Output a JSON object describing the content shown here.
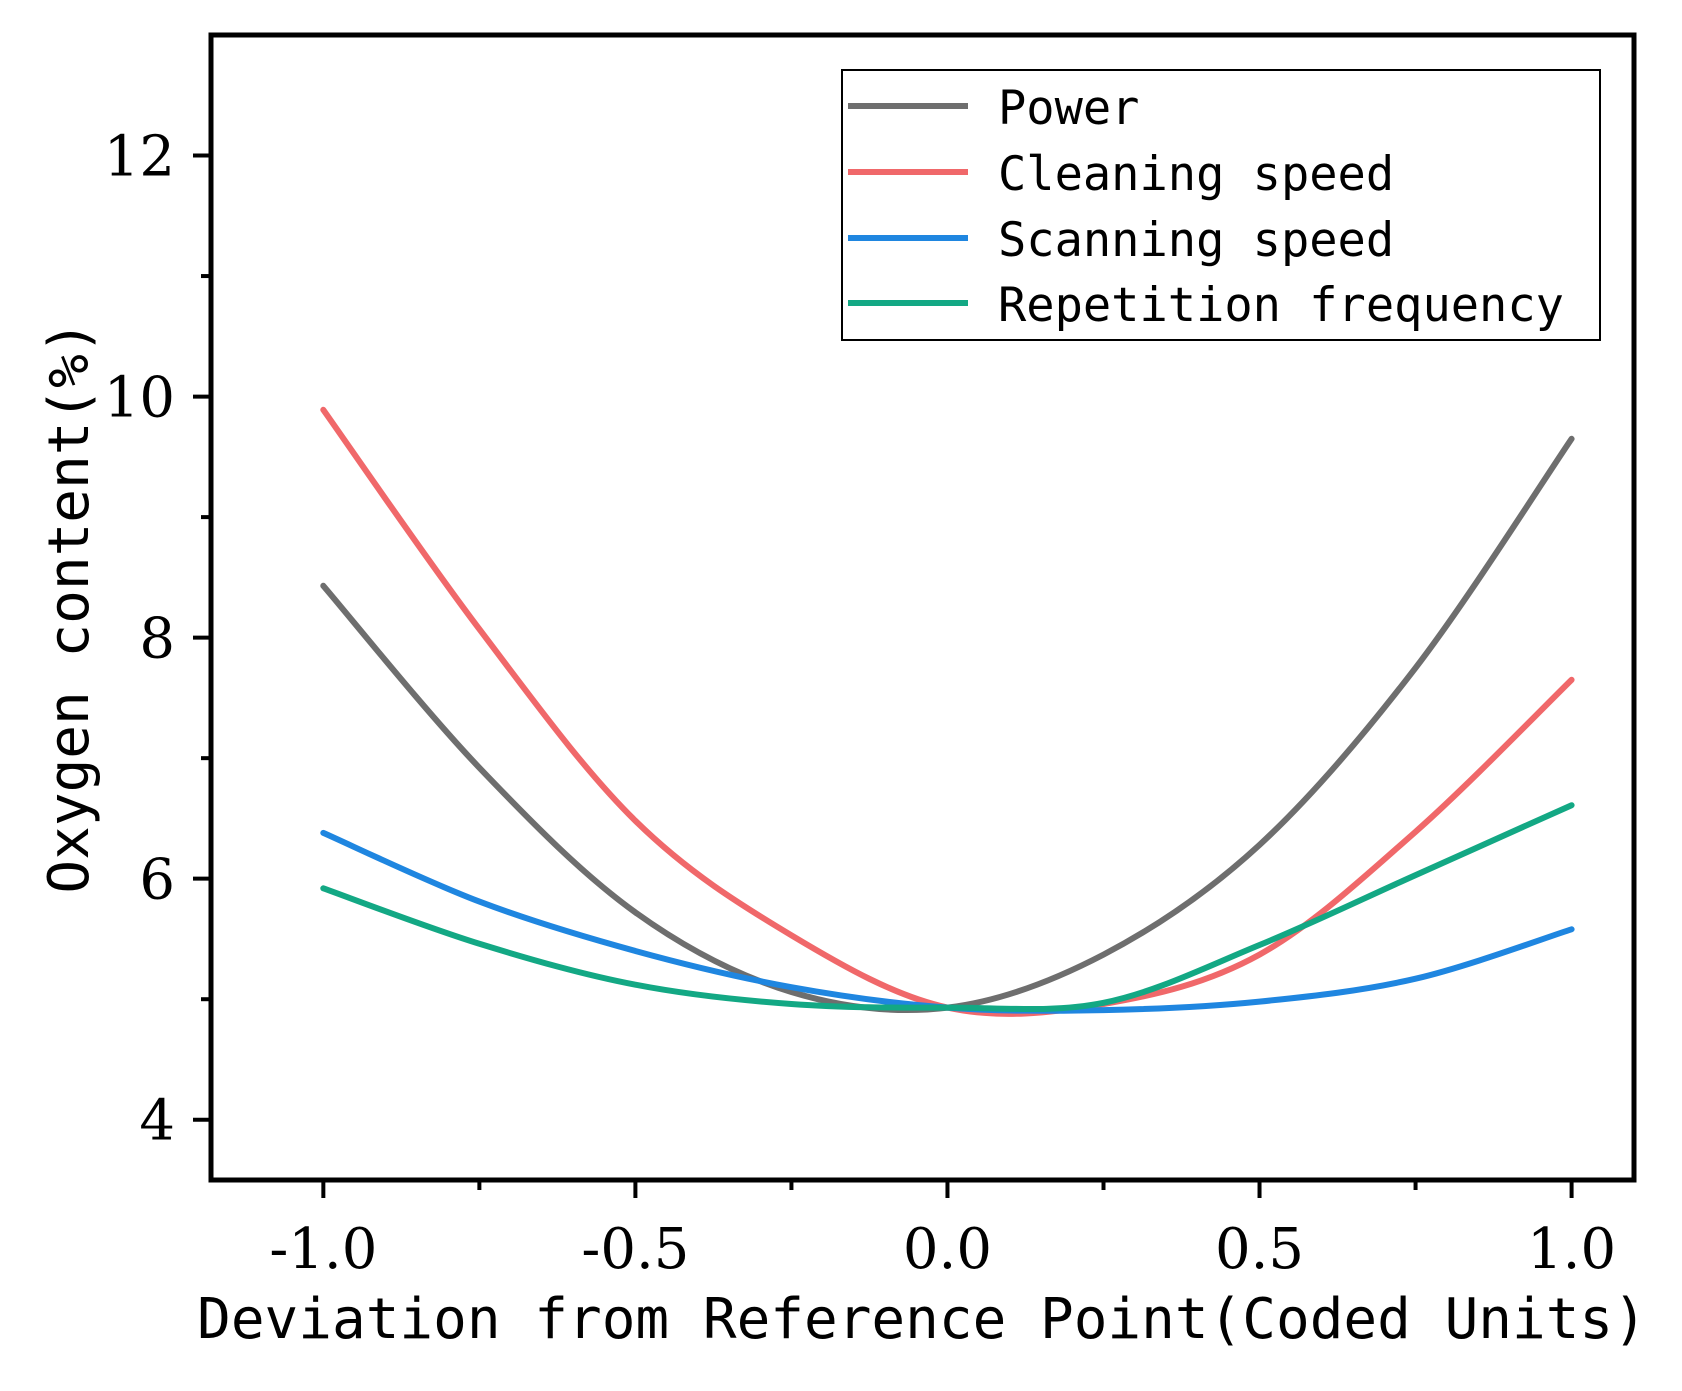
{
  "chart_data": {
    "type": "line",
    "title": "",
    "xlabel": "Deviation from Reference Point(Coded Units)",
    "ylabel": "Oxygen content(%)",
    "xlim": [
      -1.18,
      1.1
    ],
    "ylim": [
      3.5,
      13.0
    ],
    "x_ticks": [
      -1.0,
      -0.5,
      0.0,
      0.5,
      1.0
    ],
    "x_tick_labels": [
      "-1.0",
      "-0.5",
      "0.0",
      "0.5",
      "1.0"
    ],
    "x_minor_ticks": [
      -0.75,
      -0.25,
      0.25,
      0.75
    ],
    "y_ticks": [
      4,
      6,
      8,
      10,
      12
    ],
    "y_tick_labels": [
      "4",
      "6",
      "8",
      "10",
      "12"
    ],
    "y_minor_ticks": [
      5,
      7,
      9,
      11
    ],
    "grid": false,
    "legend_position": "top-right",
    "x": [
      -1.0,
      -0.75,
      -0.5,
      -0.25,
      0.0,
      0.25,
      0.5,
      0.75,
      1.0
    ],
    "series": [
      {
        "name": "Power",
        "color": "#6e6e6e",
        "values": [
          8.43,
          6.92,
          5.72,
          5.06,
          4.93,
          5.37,
          6.28,
          7.75,
          9.65
        ]
      },
      {
        "name": "Cleaning speed",
        "color": "#f0686a",
        "values": [
          9.89,
          8.07,
          6.48,
          5.53,
          4.93,
          4.96,
          5.37,
          6.39,
          7.65
        ]
      },
      {
        "name": "Scanning speed",
        "color": "#1f86e0",
        "values": [
          6.38,
          5.81,
          5.4,
          5.1,
          4.93,
          4.91,
          4.98,
          5.17,
          5.58
        ]
      },
      {
        "name": "Repetition frequency",
        "color": "#13a884",
        "values": [
          5.92,
          5.46,
          5.12,
          4.96,
          4.93,
          4.97,
          5.45,
          6.03,
          6.61
        ]
      }
    ]
  }
}
